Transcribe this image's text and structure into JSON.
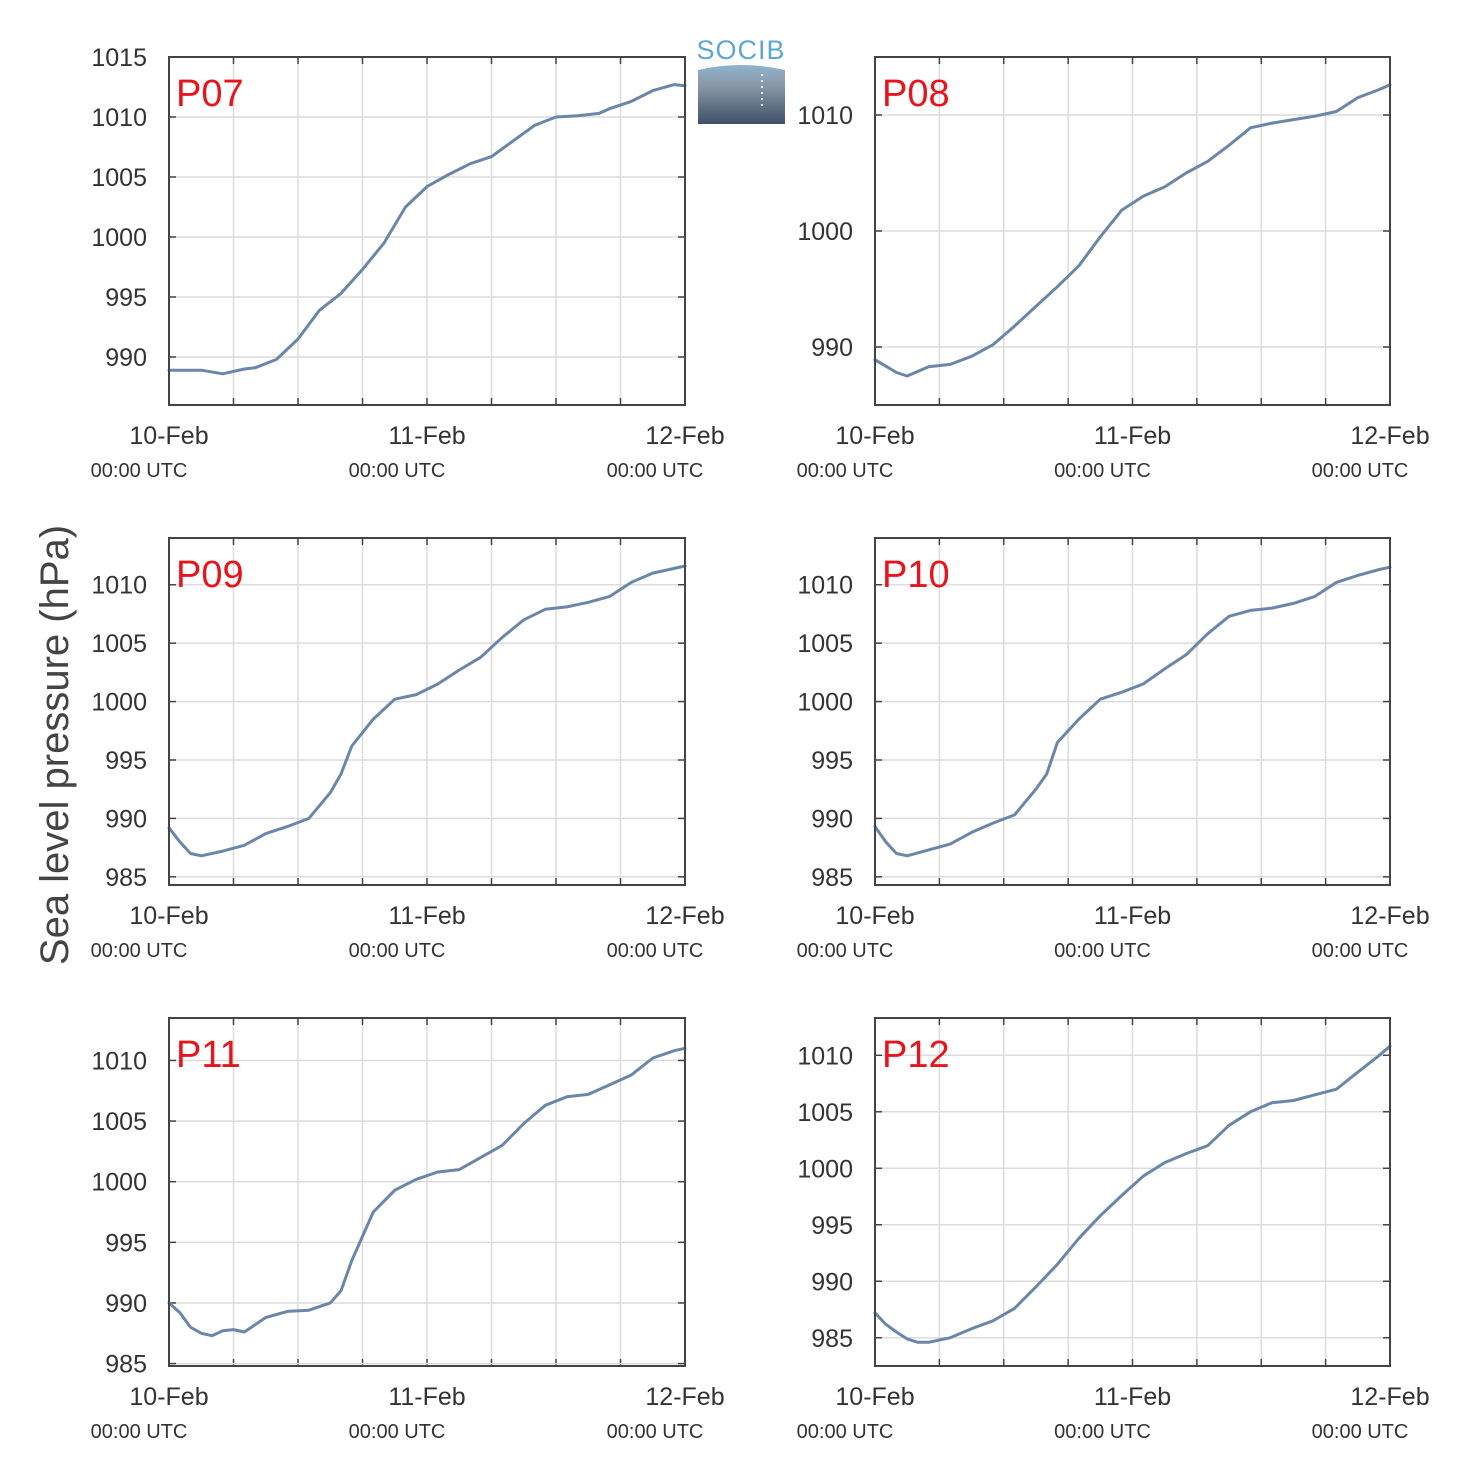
{
  "figure": {
    "ylabel": "Sea level pressure (hPa)",
    "logo_text": "SOCIB",
    "colors": {
      "line": "#6a86a8",
      "label": "#e8141c",
      "grid": "#dcdcdc",
      "axis": "#444444"
    }
  },
  "chart_data": [
    {
      "type": "line",
      "title": "P07",
      "x_ticks": [
        {
          "date": "10-Feb",
          "time": "00:00 UTC"
        },
        {
          "date": "11-Feb",
          "time": "00:00 UTC"
        },
        {
          "date": "12-Feb",
          "time": "00:00 UTC"
        }
      ],
      "xlim": [
        "2020-02-10T00:00",
        "2020-02-12T00:00"
      ],
      "yticks": [
        990,
        995,
        1000,
        1005,
        1010,
        1015
      ],
      "ylim": [
        986,
        1015
      ],
      "grid": true,
      "series": [
        {
          "x": [
            "2020-02-10T00:00",
            "2020-02-10T03:00",
            "2020-02-10T05:00",
            "2020-02-10T07:00",
            "2020-02-10T08:00",
            "2020-02-10T10:00",
            "2020-02-10T12:00",
            "2020-02-10T14:00",
            "2020-02-10T16:00",
            "2020-02-10T18:00",
            "2020-02-10T20:00",
            "2020-02-10T22:00",
            "2020-02-11T00:00",
            "2020-02-11T02:00",
            "2020-02-11T04:00",
            "2020-02-11T06:00",
            "2020-02-11T08:00",
            "2020-02-11T10:00",
            "2020-02-11T12:00",
            "2020-02-11T14:00",
            "2020-02-11T15:00",
            "2020-02-11T16:00",
            "2020-02-11T17:00",
            "2020-02-11T19:00",
            "2020-02-11T21:00",
            "2020-02-11T23:00",
            "2020-02-12T00:00"
          ],
          "y": [
            988.9,
            988.9,
            988.6,
            989.0,
            989.1,
            989.8,
            991.5,
            993.9,
            995.3,
            997.3,
            999.5,
            1002.5,
            1004.2,
            1005.2,
            1006.1,
            1006.7,
            1008.0,
            1009.3,
            1010.0,
            1010.1,
            1010.2,
            1010.3,
            1010.7,
            1011.3,
            1012.2,
            1012.7,
            1012.6
          ]
        }
      ]
    },
    {
      "type": "line",
      "title": "P08",
      "x_ticks": [
        {
          "date": "10-Feb",
          "time": "00:00 UTC"
        },
        {
          "date": "11-Feb",
          "time": "00:00 UTC"
        },
        {
          "date": "12-Feb",
          "time": "00:00 UTC"
        }
      ],
      "xlim": [
        "2020-02-10T00:00",
        "2020-02-12T00:00"
      ],
      "yticks": [
        990,
        1000,
        1010
      ],
      "ylim": [
        985,
        1015
      ],
      "grid": true,
      "series": [
        {
          "x": [
            "2020-02-10T00:00",
            "2020-02-10T02:00",
            "2020-02-10T03:00",
            "2020-02-10T05:00",
            "2020-02-10T07:00",
            "2020-02-10T09:00",
            "2020-02-10T11:00",
            "2020-02-10T13:00",
            "2020-02-10T15:00",
            "2020-02-10T17:00",
            "2020-02-10T19:00",
            "2020-02-10T21:00",
            "2020-02-10T23:00",
            "2020-02-11T01:00",
            "2020-02-11T03:00",
            "2020-02-11T05:00",
            "2020-02-11T07:00",
            "2020-02-11T09:00",
            "2020-02-11T11:00",
            "2020-02-11T13:00",
            "2020-02-11T15:00",
            "2020-02-11T17:00",
            "2020-02-11T19:00",
            "2020-02-11T21:00",
            "2020-02-11T23:00",
            "2020-02-12T00:00"
          ],
          "y": [
            988.9,
            987.8,
            987.5,
            988.3,
            988.5,
            989.2,
            990.2,
            991.8,
            993.5,
            995.2,
            997.0,
            999.5,
            1001.8,
            1003.0,
            1003.8,
            1005.0,
            1006.0,
            1007.4,
            1008.9,
            1009.3,
            1009.6,
            1009.9,
            1010.3,
            1011.5,
            1012.2,
            1012.6
          ]
        }
      ]
    },
    {
      "type": "line",
      "title": "P09",
      "x_ticks": [
        {
          "date": "10-Feb",
          "time": "00:00 UTC"
        },
        {
          "date": "11-Feb",
          "time": "00:00 UTC"
        },
        {
          "date": "12-Feb",
          "time": "00:00 UTC"
        }
      ],
      "xlim": [
        "2020-02-10T00:00",
        "2020-02-12T00:00"
      ],
      "yticks": [
        985,
        990,
        995,
        1000,
        1005,
        1010
      ],
      "ylim": [
        984.3,
        1014
      ],
      "grid": true,
      "series": [
        {
          "x": [
            "2020-02-10T00:00",
            "2020-02-10T01:00",
            "2020-02-10T02:00",
            "2020-02-10T03:00",
            "2020-02-10T05:00",
            "2020-02-10T07:00",
            "2020-02-10T09:00",
            "2020-02-10T11:00",
            "2020-02-10T13:00",
            "2020-02-10T15:00",
            "2020-02-10T16:00",
            "2020-02-10T17:00",
            "2020-02-10T19:00",
            "2020-02-10T21:00",
            "2020-02-10T23:00",
            "2020-02-11T01:00",
            "2020-02-11T03:00",
            "2020-02-11T05:00",
            "2020-02-11T07:00",
            "2020-02-11T09:00",
            "2020-02-11T11:00",
            "2020-02-11T13:00",
            "2020-02-11T15:00",
            "2020-02-11T17:00",
            "2020-02-11T19:00",
            "2020-02-11T21:00",
            "2020-02-11T23:00",
            "2020-02-12T00:00"
          ],
          "y": [
            989.2,
            988.0,
            987.0,
            986.8,
            987.2,
            987.7,
            988.7,
            989.3,
            990.0,
            992.2,
            993.8,
            996.2,
            998.5,
            1000.2,
            1000.6,
            1001.5,
            1002.7,
            1003.8,
            1005.5,
            1007.0,
            1007.9,
            1008.1,
            1008.5,
            1009.0,
            1010.2,
            1011.0,
            1011.4,
            1011.6
          ]
        }
      ]
    },
    {
      "type": "line",
      "title": "P10",
      "x_ticks": [
        {
          "date": "10-Feb",
          "time": "00:00 UTC"
        },
        {
          "date": "11-Feb",
          "time": "00:00 UTC"
        },
        {
          "date": "12-Feb",
          "time": "00:00 UTC"
        }
      ],
      "xlim": [
        "2020-02-10T00:00",
        "2020-02-12T00:00"
      ],
      "yticks": [
        985,
        990,
        995,
        1000,
        1005,
        1010
      ],
      "ylim": [
        984.3,
        1014
      ],
      "grid": true,
      "series": [
        {
          "x": [
            "2020-02-10T00:00",
            "2020-02-10T01:00",
            "2020-02-10T02:00",
            "2020-02-10T03:00",
            "2020-02-10T05:00",
            "2020-02-10T07:00",
            "2020-02-10T09:00",
            "2020-02-10T11:00",
            "2020-02-10T13:00",
            "2020-02-10T15:00",
            "2020-02-10T16:00",
            "2020-02-10T17:00",
            "2020-02-10T19:00",
            "2020-02-10T21:00",
            "2020-02-10T23:00",
            "2020-02-11T01:00",
            "2020-02-11T03:00",
            "2020-02-11T05:00",
            "2020-02-11T07:00",
            "2020-02-11T09:00",
            "2020-02-11T11:00",
            "2020-02-11T13:00",
            "2020-02-11T15:00",
            "2020-02-11T17:00",
            "2020-02-11T19:00",
            "2020-02-11T21:00",
            "2020-02-11T23:00",
            "2020-02-12T00:00"
          ],
          "y": [
            989.3,
            988.0,
            987.0,
            986.8,
            987.3,
            987.8,
            988.8,
            989.6,
            990.3,
            992.5,
            993.8,
            996.5,
            998.5,
            1000.2,
            1000.8,
            1001.5,
            1002.8,
            1004.0,
            1005.8,
            1007.3,
            1007.8,
            1008.0,
            1008.4,
            1009.0,
            1010.2,
            1010.8,
            1011.3,
            1011.5
          ]
        }
      ]
    },
    {
      "type": "line",
      "title": "P11",
      "x_ticks": [
        {
          "date": "10-Feb",
          "time": "00:00 UTC"
        },
        {
          "date": "11-Feb",
          "time": "00:00 UTC"
        },
        {
          "date": "12-Feb",
          "time": "00:00 UTC"
        }
      ],
      "xlim": [
        "2020-02-10T00:00",
        "2020-02-12T00:00"
      ],
      "yticks": [
        985,
        990,
        995,
        1000,
        1005,
        1010
      ],
      "ylim": [
        984.8,
        1013.5
      ],
      "grid": true,
      "series": [
        {
          "x": [
            "2020-02-10T00:00",
            "2020-02-10T01:00",
            "2020-02-10T02:00",
            "2020-02-10T03:00",
            "2020-02-10T04:00",
            "2020-02-10T05:00",
            "2020-02-10T06:00",
            "2020-02-10T07:00",
            "2020-02-10T09:00",
            "2020-02-10T11:00",
            "2020-02-10T13:00",
            "2020-02-10T15:00",
            "2020-02-10T16:00",
            "2020-02-10T17:00",
            "2020-02-10T19:00",
            "2020-02-10T21:00",
            "2020-02-10T23:00",
            "2020-02-11T01:00",
            "2020-02-11T03:00",
            "2020-02-11T05:00",
            "2020-02-11T07:00",
            "2020-02-11T09:00",
            "2020-02-11T11:00",
            "2020-02-11T13:00",
            "2020-02-11T15:00",
            "2020-02-11T17:00",
            "2020-02-11T19:00",
            "2020-02-11T21:00",
            "2020-02-11T23:00",
            "2020-02-12T00:00"
          ],
          "y": [
            990.0,
            989.2,
            988.0,
            987.5,
            987.3,
            987.7,
            987.8,
            987.6,
            988.8,
            989.3,
            989.4,
            990.0,
            991.0,
            993.5,
            997.5,
            999.3,
            1000.2,
            1000.8,
            1001.0,
            1002.0,
            1003.0,
            1004.8,
            1006.3,
            1007.0,
            1007.2,
            1008.0,
            1008.8,
            1010.2,
            1010.8,
            1011.0
          ]
        }
      ]
    },
    {
      "type": "line",
      "title": "P12",
      "x_ticks": [
        {
          "date": "10-Feb",
          "time": "00:00 UTC"
        },
        {
          "date": "11-Feb",
          "time": "00:00 UTC"
        },
        {
          "date": "12-Feb",
          "time": "00:00 UTC"
        }
      ],
      "xlim": [
        "2020-02-10T00:00",
        "2020-02-12T00:00"
      ],
      "yticks": [
        985,
        990,
        995,
        1000,
        1005,
        1010
      ],
      "ylim": [
        982.5,
        1013.3
      ],
      "grid": true,
      "series": [
        {
          "x": [
            "2020-02-10T00:00",
            "2020-02-10T01:00",
            "2020-02-10T02:00",
            "2020-02-10T03:00",
            "2020-02-10T04:00",
            "2020-02-10T05:00",
            "2020-02-10T06:00",
            "2020-02-10T07:00",
            "2020-02-10T09:00",
            "2020-02-10T11:00",
            "2020-02-10T13:00",
            "2020-02-10T15:00",
            "2020-02-10T17:00",
            "2020-02-10T19:00",
            "2020-02-10T21:00",
            "2020-02-10T23:00",
            "2020-02-11T01:00",
            "2020-02-11T03:00",
            "2020-02-11T05:00",
            "2020-02-11T07:00",
            "2020-02-11T09:00",
            "2020-02-11T11:00",
            "2020-02-11T13:00",
            "2020-02-11T15:00",
            "2020-02-11T17:00",
            "2020-02-11T19:00",
            "2020-02-11T21:00",
            "2020-02-11T23:00",
            "2020-02-12T00:00"
          ],
          "y": [
            987.2,
            986.2,
            985.5,
            984.9,
            984.6,
            984.6,
            984.8,
            985.0,
            985.8,
            986.5,
            987.6,
            989.5,
            991.5,
            993.8,
            995.8,
            997.6,
            999.3,
            1000.5,
            1001.3,
            1002.0,
            1003.8,
            1005.0,
            1005.8,
            1006.0,
            1006.5,
            1007.0,
            1008.5,
            1010.0,
            1010.8
          ]
        }
      ]
    }
  ]
}
